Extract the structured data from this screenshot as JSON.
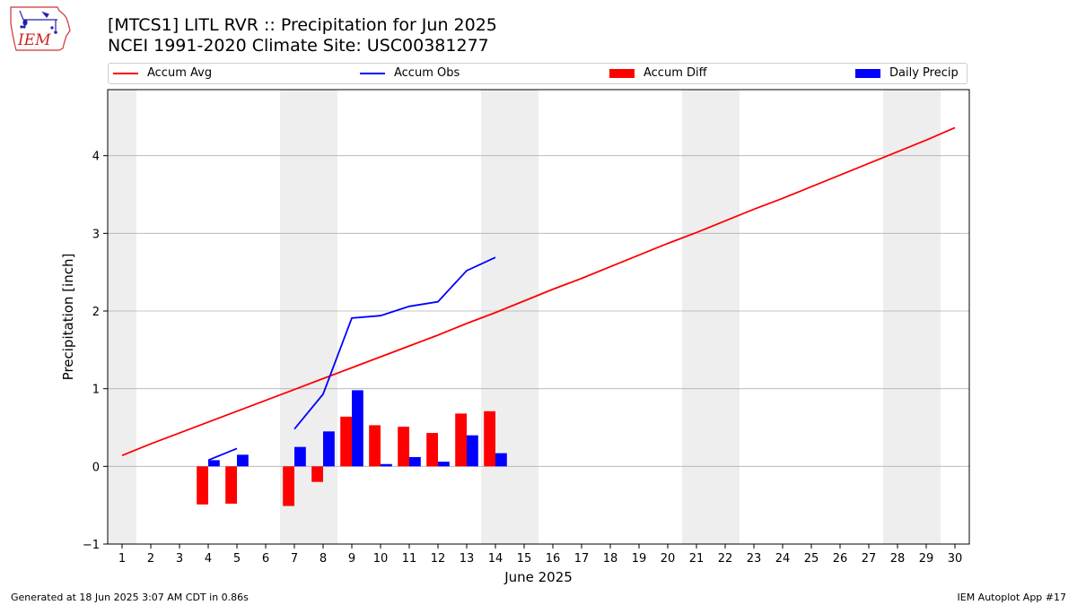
{
  "header": {
    "title_line1": "[MTCS1] LITL RVR :: Precipitation for Jun 2025",
    "title_line2": "NCEI 1991-2020 Climate Site: USC00381277",
    "logo_text": "IEM"
  },
  "legend": {
    "items": [
      {
        "label": "Accum Avg",
        "kind": "line",
        "color": "#ff0000"
      },
      {
        "label": "Accum Obs",
        "kind": "line",
        "color": "#0000ff"
      },
      {
        "label": "Accum Diff",
        "kind": "patch",
        "color": "#ff0000"
      },
      {
        "label": "Daily Precip",
        "kind": "patch",
        "color": "#0000ff"
      }
    ]
  },
  "footer": {
    "left": "Generated at 18 Jun 2025 3:07 AM CDT in 0.86s",
    "right": "IEM Autoplot App #17"
  },
  "colors": {
    "avg": "#ff0000",
    "obs": "#0000ff",
    "diff": "#ff0000",
    "daily": "#0000ff",
    "weekend_shade": "#eeeeee",
    "grid": "#b0b0b0"
  },
  "chart_data": {
    "type": "bar",
    "xlabel": "June 2025",
    "ylabel": "Precipitation [inch]",
    "xlim": [
      0.5,
      30.5
    ],
    "ylim": [
      -1,
      4.85
    ],
    "yticks": [
      -1,
      0,
      1,
      2,
      3,
      4
    ],
    "ytick_labels": [
      "−1",
      "0",
      "1",
      "2",
      "3",
      "4"
    ],
    "x": [
      1,
      2,
      3,
      4,
      5,
      6,
      7,
      8,
      9,
      10,
      11,
      12,
      13,
      14,
      15,
      16,
      17,
      18,
      19,
      20,
      21,
      22,
      23,
      24,
      25,
      26,
      27,
      28,
      29,
      30
    ],
    "grid": "horizontal",
    "legend_position": "top",
    "shaded_days": [
      1,
      7,
      8,
      14,
      15,
      21,
      22,
      28,
      29
    ],
    "series": [
      {
        "name": "Accum Avg",
        "kind": "line",
        "x": [
          1,
          2,
          3,
          4,
          5,
          6,
          7,
          8,
          9,
          10,
          11,
          12,
          13,
          14,
          15,
          16,
          17,
          18,
          19,
          20,
          21,
          22,
          23,
          24,
          25,
          26,
          27,
          28,
          29,
          30
        ],
        "values": [
          0.14,
          0.29,
          0.43,
          0.57,
          0.71,
          0.85,
          0.99,
          1.13,
          1.27,
          1.41,
          1.55,
          1.69,
          1.84,
          1.98,
          2.13,
          2.28,
          2.42,
          2.57,
          2.72,
          2.87,
          3.01,
          3.16,
          3.31,
          3.45,
          3.6,
          3.75,
          3.9,
          4.05,
          4.2,
          4.36
        ]
      },
      {
        "name": "Accum Obs",
        "kind": "line",
        "segments": [
          {
            "x": [
              4,
              5
            ],
            "values": [
              0.08,
              0.23
            ]
          },
          {
            "x": [
              7,
              8,
              9,
              10,
              11,
              12,
              13,
              14
            ],
            "values": [
              0.48,
              0.93,
              1.91,
              1.94,
              2.06,
              2.12,
              2.52,
              2.69
            ]
          }
        ]
      },
      {
        "name": "Accum Diff",
        "kind": "bar",
        "x": [
          4,
          5,
          7,
          8,
          9,
          10,
          11,
          12,
          13,
          14
        ],
        "values": [
          -0.49,
          -0.48,
          -0.51,
          -0.2,
          0.64,
          0.53,
          0.51,
          0.43,
          0.68,
          0.71
        ]
      },
      {
        "name": "Daily Precip",
        "kind": "bar",
        "x": [
          4,
          5,
          7,
          8,
          9,
          10,
          11,
          12,
          13,
          14
        ],
        "values": [
          0.08,
          0.15,
          0.25,
          0.45,
          0.98,
          0.03,
          0.12,
          0.06,
          0.4,
          0.17
        ]
      }
    ]
  }
}
